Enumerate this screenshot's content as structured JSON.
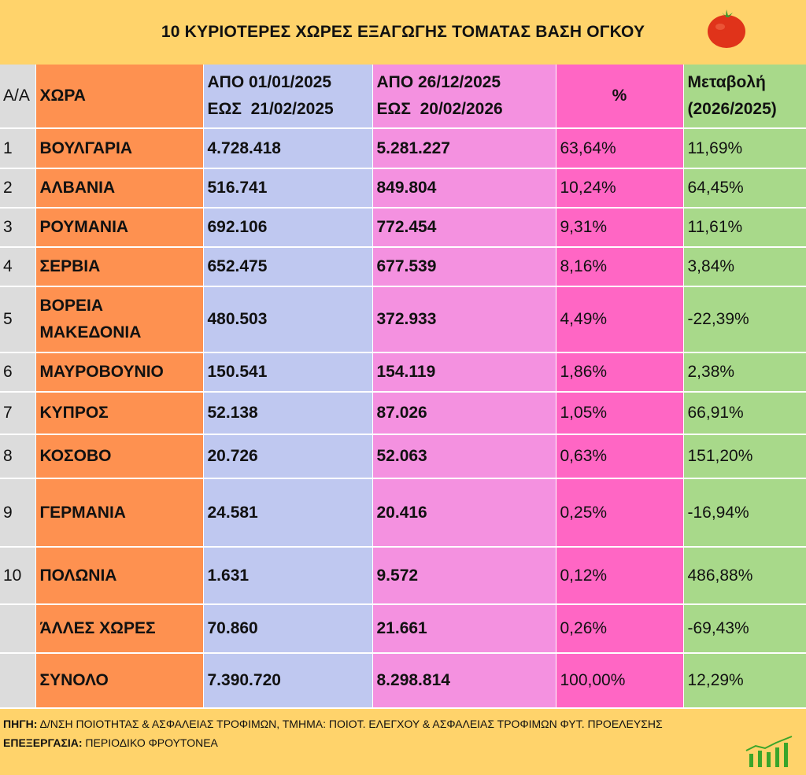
{
  "title": "10 ΚΥΡΙΟΤΕΡΕΣ ΧΩΡΕΣ ΕΞΑΓΩΓΗΣ ΤΟΜΑΤΑΣ ΒΑΣΗ ΟΓΚΟΥ",
  "icons": {
    "title": "tomato-icon",
    "footer": "growth-chart-icon"
  },
  "colors": {
    "background": "#ffd36b",
    "rank": "#dcdcdc",
    "country": "#fe9150",
    "period1": "#bfc8f0",
    "period2": "#f491e0",
    "share": "#ff66c4",
    "change": "#a8d98a"
  },
  "headers": {
    "rank": "Α/Α",
    "country": "ΧΩΡΑ",
    "period1_line1": "ΑΠΟ 01/01/2025",
    "period1_line2": "ΕΩΣ  21/02/2025",
    "period2_line1": "ΑΠΟ 26/12/2025",
    "period2_line2": "ΕΩΣ  20/02/2026",
    "share": "%",
    "change_line1": "Μεταβολή",
    "change_line2": "(2026/2025)"
  },
  "rows": [
    {
      "rank": "1",
      "country": "ΒΟΥΛΓΑΡΙΑ",
      "p1": "4.728.418",
      "p2": "5.281.227",
      "share": "63,64%",
      "change": "11,69%"
    },
    {
      "rank": "2",
      "country": "ΑΛΒΑΝΙΑ",
      "p1": "516.741",
      "p2": "849.804",
      "share": "10,24%",
      "change": "64,45%"
    },
    {
      "rank": "3",
      "country": "ΡΟΥΜΑΝΙΑ",
      "p1": "692.106",
      "p2": "772.454",
      "share": "9,31%",
      "change": "11,61%"
    },
    {
      "rank": "4",
      "country": "ΣΕΡΒΙΑ",
      "p1": "652.475",
      "p2": "677.539",
      "share": "8,16%",
      "change": "3,84%"
    },
    {
      "rank": "5",
      "country": "ΒΟΡΕΙΑ ΜΑΚΕΔΟΝΙΑ",
      "p1": "480.503",
      "p2": "372.933",
      "share": "4,49%",
      "change": "-22,39%"
    },
    {
      "rank": "6",
      "country": "ΜΑΥΡΟΒΟΥΝΙΟ",
      "p1": "150.541",
      "p2": "154.119",
      "share": "1,86%",
      "change": "2,38%"
    },
    {
      "rank": "7",
      "country": "ΚΥΠΡΟΣ",
      "p1": "52.138",
      "p2": "87.026",
      "share": "1,05%",
      "change": "66,91%"
    },
    {
      "rank": "8",
      "country": "ΚΟΣΟΒΟ",
      "p1": "20.726",
      "p2": "52.063",
      "share": "0,63%",
      "change": "151,20%"
    },
    {
      "rank": "9",
      "country": "ΓΕΡΜΑΝΙΑ",
      "p1": "24.581",
      "p2": "20.416",
      "share": "0,25%",
      "change": "-16,94%"
    },
    {
      "rank": "10",
      "country": "ΠΟΛΩΝΙΑ",
      "p1": "1.631",
      "p2": "9.572",
      "share": "0,12%",
      "change": "486,88%"
    },
    {
      "rank": "",
      "country": "ΆΛΛΕΣ ΧΩΡΕΣ",
      "p1": "70.860",
      "p2": "21.661",
      "share": "0,26%",
      "change": "-69,43%"
    },
    {
      "rank": "",
      "country": "ΣΥΝΟΛΟ",
      "p1": "7.390.720",
      "p2": "8.298.814",
      "share": "100,00%",
      "change": "12,29%"
    }
  ],
  "footer": {
    "source_label": "ΠΗΓΗ:",
    "source_text": " Δ/ΝΣΗ ΠΟΙΟΤΗΤΑΣ & ΑΣΦΑΛΕΙΑΣ ΤΡΟΦΙΜΩΝ, ΤΜΗΜΑ: ΠΟΙΟΤ. ΕΛΕΓΧΟΥ & ΑΣΦΑΛΕΙΑΣ ΤΡΟΦΙΜΩΝ ΦΥΤ. ΠΡΟΕΛΕΥΣΗΣ",
    "processing_label": "ΕΠΕΞΕΡΓΑΣΙΑ:",
    "processing_text": " ΠΕΡΙΟΔΙΚΟ ΦΡΟΥΤΟΝΕΑ"
  }
}
